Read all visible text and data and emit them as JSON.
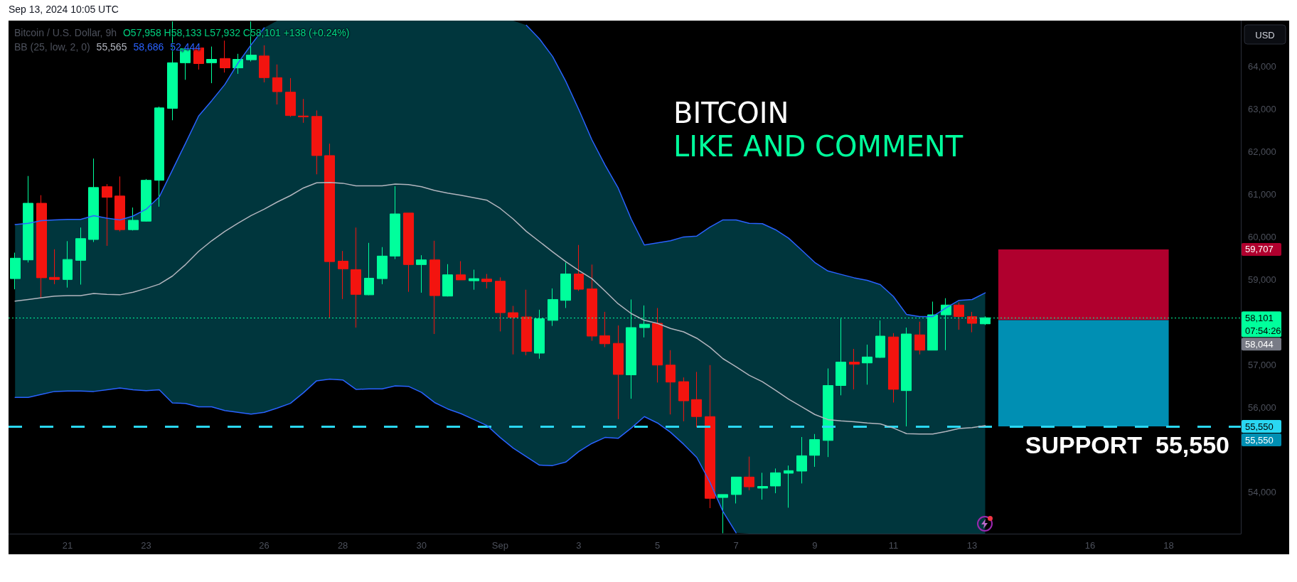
{
  "chart_data": {
    "type": "candlestick",
    "title": "Bitcoin / U.S. Dollar, 9h",
    "ylabel": "USD",
    "annotations": [
      "Sep 13, 2024 10:05 UTC",
      "O57,958 H58,133 L57,932 C58,101 +138 (+0.24%)",
      "BB (25, low, 2, 0)",
      "55,565",
      "58,686",
      "52,444",
      "BITCOIN",
      "LIKE AND COMMENT",
      {
        "text": "SUPPORT  55,550",
        "y": 55550
      },
      "07:54:26",
      "58,044",
      "59,707",
      "55,550"
    ],
    "categories": [
      null,
      null,
      null,
      null,
      "21",
      null,
      null,
      null,
      null,
      null,
      "23",
      null,
      null,
      null,
      null,
      null,
      null,
      null,
      null,
      "26",
      null,
      null,
      null,
      null,
      null,
      "28",
      null,
      null,
      null,
      null,
      null,
      "30",
      null,
      null,
      null,
      null,
      null,
      "Sep",
      null,
      null,
      null,
      null,
      null,
      "3",
      null,
      null,
      null,
      null,
      null,
      "5",
      null,
      null,
      null,
      null,
      null,
      "7",
      null,
      null,
      null,
      null,
      null,
      "9",
      null,
      null,
      null,
      null,
      null,
      "11",
      null,
      null,
      null,
      null,
      null,
      "13",
      null,
      null,
      null,
      null,
      null,
      null,
      null,
      null,
      "16",
      null,
      null,
      null,
      null,
      null,
      "18",
      null,
      null,
      null,
      null,
      null
    ],
    "ohlc": [
      [
        59020,
        59630,
        58770,
        59500
      ],
      [
        59460,
        61430,
        59400,
        60790
      ],
      [
        60790,
        60980,
        58560,
        59040
      ],
      [
        59050,
        59710,
        58890,
        59000
      ],
      [
        59000,
        59900,
        58810,
        59470
      ],
      [
        59450,
        60220,
        58880,
        59960
      ],
      [
        59940,
        61840,
        59880,
        61160
      ],
      [
        61180,
        61240,
        59790,
        60930
      ],
      [
        60960,
        61420,
        60130,
        60170
      ],
      [
        60170,
        60690,
        60150,
        60390
      ],
      [
        60370,
        61360,
        60360,
        61330
      ],
      [
        61330,
        63060,
        60710,
        63030
      ],
      [
        63020,
        65060,
        62740,
        64090
      ],
      [
        64090,
        64430,
        63690,
        64420
      ],
      [
        64440,
        64440,
        63930,
        64070
      ],
      [
        64090,
        64470,
        63610,
        64170
      ],
      [
        64190,
        64610,
        63860,
        63970
      ],
      [
        63970,
        64300,
        63830,
        64170
      ],
      [
        64160,
        65060,
        64120,
        64270
      ],
      [
        64250,
        64500,
        63630,
        63740
      ],
      [
        63740,
        64050,
        63110,
        63410
      ],
      [
        63400,
        63730,
        62820,
        62850
      ],
      [
        62840,
        63240,
        62680,
        62820
      ],
      [
        62830,
        62970,
        61470,
        61910
      ],
      [
        61910,
        62190,
        58100,
        59420
      ],
      [
        59430,
        59670,
        58540,
        59250
      ],
      [
        59230,
        60220,
        57870,
        58650
      ],
      [
        58640,
        59860,
        58630,
        59030
      ],
      [
        59020,
        59760,
        58890,
        59550
      ],
      [
        59550,
        61190,
        59480,
        60540
      ],
      [
        60560,
        60560,
        58710,
        59350
      ],
      [
        59350,
        59570,
        58690,
        59460
      ],
      [
        59460,
        59910,
        57720,
        58620
      ],
      [
        58610,
        59360,
        58600,
        59110
      ],
      [
        59110,
        59430,
        58990,
        58990
      ],
      [
        58970,
        59230,
        58760,
        59020
      ],
      [
        59010,
        59130,
        58790,
        58950
      ],
      [
        58960,
        59050,
        57780,
        58220
      ],
      [
        58220,
        58380,
        57240,
        58110
      ],
      [
        58120,
        58760,
        57220,
        57310
      ],
      [
        57270,
        58290,
        57140,
        58080
      ],
      [
        58040,
        58790,
        57910,
        58530
      ],
      [
        58510,
        59400,
        58330,
        59130
      ],
      [
        59130,
        59810,
        58730,
        58770
      ],
      [
        58780,
        59350,
        57560,
        57670
      ],
      [
        57680,
        58240,
        57410,
        57490
      ],
      [
        57500,
        57920,
        55720,
        56770
      ],
      [
        56760,
        58530,
        56200,
        57870
      ],
      [
        57870,
        58390,
        57640,
        57950
      ],
      [
        57970,
        58330,
        56580,
        56990
      ],
      [
        56990,
        57340,
        55830,
        56590
      ],
      [
        56600,
        56700,
        55670,
        56150
      ],
      [
        56180,
        56830,
        55530,
        55780
      ],
      [
        55780,
        56990,
        53630,
        53860
      ],
      [
        53880,
        53950,
        53040,
        53950
      ],
      [
        53950,
        54360,
        53740,
        54360
      ],
      [
        54360,
        54840,
        54050,
        54130
      ],
      [
        54100,
        54460,
        53830,
        54140
      ],
      [
        54150,
        54560,
        53980,
        54460
      ],
      [
        54450,
        54630,
        53640,
        54510
      ],
      [
        54500,
        55300,
        54210,
        54860
      ],
      [
        54870,
        55370,
        54600,
        55240
      ],
      [
        55220,
        56910,
        54830,
        56510
      ],
      [
        56510,
        58080,
        56280,
        57060
      ],
      [
        57060,
        57370,
        56420,
        57010
      ],
      [
        57040,
        57470,
        56530,
        57180
      ],
      [
        57170,
        58040,
        57160,
        57670
      ],
      [
        57650,
        57740,
        56110,
        56420
      ],
      [
        56390,
        57870,
        55550,
        57720
      ],
      [
        57700,
        58010,
        57240,
        57340
      ],
      [
        57340,
        58480,
        57340,
        58170
      ],
      [
        58170,
        58560,
        57340,
        58400
      ],
      [
        58400,
        58460,
        57820,
        58130
      ],
      [
        58130,
        58240,
        57760,
        57970
      ],
      [
        57958,
        58133,
        57932,
        58101
      ],
      null,
      null,
      null,
      null,
      null,
      null,
      null,
      null,
      null,
      null,
      null,
      null,
      null,
      null,
      null,
      null,
      null,
      null,
      null
    ],
    "colors": [
      "#00ff9c",
      "#00ff9c",
      "#f3140f",
      "#f3140f",
      "#00ff9c",
      "#00ff9c",
      "#00ff9c",
      "#f3140f",
      "#f3140f",
      "#00ff9c",
      "#00ff9c",
      "#00ff9c",
      "#00ff9c",
      "#00ff9c",
      "#f3140f",
      "#00ff9c",
      "#f3140f",
      "#00ff9c",
      "#00ff9c",
      "#f3140f",
      "#f3140f",
      "#f3140f",
      "#f3140f",
      "#f3140f",
      "#f3140f",
      "#f3140f",
      "#f3140f",
      "#00ff9c",
      "#00ff9c",
      "#00ff9c",
      "#f3140f",
      "#00ff9c",
      "#f3140f",
      "#00ff9c",
      "#f3140f",
      "#00ff9c",
      "#f3140f",
      "#f3140f",
      "#f3140f",
      "#f3140f",
      "#00ff9c",
      "#00ff9c",
      "#00ff9c",
      "#f3140f",
      "#f3140f",
      "#f3140f",
      "#f3140f",
      "#00ff9c",
      "#00ff9c",
      "#f3140f",
      "#f3140f",
      "#f3140f",
      "#f3140f",
      "#f3140f",
      "#00ff9c",
      "#00ff9c",
      "#f3140f",
      "#00ff9c",
      "#00ff9c",
      "#00ff9c",
      "#00ff9c",
      "#00ff9c",
      "#00ff9c",
      "#00ff9c",
      "#f3140f",
      "#00ff9c",
      "#00ff9c",
      "#f3140f",
      "#00ff9c",
      "#f3140f",
      "#00ff9c",
      "#00ff9c",
      "#f3140f",
      "#f3140f",
      "#00ff9c",
      null,
      null,
      null,
      null,
      null,
      null,
      null,
      null,
      null,
      null,
      null,
      null,
      null,
      null,
      null,
      null,
      null,
      null,
      null
    ],
    "series": [
      {
        "type": "line",
        "color": "#2962ff",
        "values": [
          60290,
          60320,
          60380,
          60400,
          60410,
          60410,
          60500,
          60440,
          60400,
          60490,
          60650,
          60940,
          61570,
          62200,
          62840,
          63200,
          63580,
          64080,
          64510,
          64910,
          null,
          null,
          null,
          null,
          null,
          null,
          null,
          null,
          null,
          null,
          null,
          null,
          null,
          null,
          null,
          null,
          null,
          null,
          null,
          64970,
          64650,
          64240,
          63660,
          62990,
          62280,
          61690,
          61150,
          60420,
          59810,
          59860,
          59910,
          60000,
          60020,
          60230,
          60400,
          60400,
          60320,
          60310,
          60170,
          59970,
          59690,
          59400,
          59200,
          59120,
          59040,
          58980,
          58880,
          58600,
          58180,
          58130,
          58130,
          58330,
          58510,
          58530,
          58686,
          null,
          null,
          null,
          null,
          null,
          null,
          null,
          null,
          null,
          null,
          null,
          null,
          null,
          null,
          null,
          null,
          null,
          null,
          null
        ]
      },
      {
        "type": "line",
        "color": "#b2b5be",
        "values": [
          58490,
          58530,
          58570,
          58610,
          58620,
          58620,
          58670,
          58650,
          58640,
          58700,
          58790,
          58890,
          59080,
          59350,
          59660,
          59910,
          60130,
          60320,
          60500,
          60650,
          60820,
          60970,
          61150,
          61270,
          61280,
          61260,
          61200,
          61200,
          61200,
          61240,
          61230,
          61180,
          61090,
          61030,
          60980,
          60920,
          60860,
          60670,
          60420,
          60130,
          59890,
          59650,
          59420,
          59210,
          59020,
          58730,
          58430,
          58200,
          58040,
          57970,
          57850,
          57770,
          57620,
          57410,
          57140,
          56950,
          56750,
          56600,
          56400,
          56190,
          56010,
          55830,
          55710,
          55680,
          55660,
          55630,
          55610,
          55510,
          55380,
          55370,
          55370,
          55430,
          55500,
          55520,
          55565,
          null,
          null,
          null,
          null,
          null,
          null,
          null,
          null,
          null,
          null,
          null,
          null,
          null,
          null,
          null,
          null,
          null,
          null,
          null
        ],
        "upper": [
          60290,
          60320,
          60380,
          60400,
          60410,
          60410,
          60500,
          60440,
          60400,
          60490,
          60650,
          60940,
          61570,
          62200,
          62840,
          63200,
          63580,
          64080,
          64510,
          64910,
          65080,
          65080,
          65080,
          65080,
          65080,
          65080,
          65080,
          65080,
          65080,
          65080,
          65080,
          65080,
          65080,
          65080,
          65080,
          65080,
          65080,
          65080,
          65080,
          64970,
          64650,
          64240,
          63660,
          62990,
          62280,
          61690,
          61150,
          60420,
          59810,
          59860,
          59910,
          60000,
          60020,
          60230,
          60400,
          60400,
          60320,
          60310,
          60170,
          59970,
          59690,
          59400,
          59200,
          59120,
          59040,
          58980,
          58880,
          58600,
          58180,
          58130,
          58130,
          58330,
          58510,
          58530,
          58686,
          null,
          null,
          null,
          null,
          null,
          null,
          null,
          null,
          null,
          null,
          null,
          null,
          null,
          null,
          null,
          null,
          null,
          null,
          null
        ],
        "lower": [
          56230,
          56230,
          56300,
          56370,
          56380,
          56380,
          56370,
          56410,
          56450,
          56410,
          56390,
          56410,
          56100,
          56090,
          56010,
          56010,
          55920,
          55880,
          55840,
          55880,
          55980,
          56090,
          56340,
          56620,
          56660,
          56640,
          56420,
          56430,
          56430,
          56500,
          56490,
          56350,
          56110,
          55960,
          55850,
          55710,
          55570,
          55290,
          55040,
          54840,
          54640,
          54630,
          54710,
          54960,
          55150,
          55290,
          55270,
          55510,
          55780,
          55630,
          55410,
          55130,
          54820,
          54240,
          53550,
          53050,
          53030,
          53030,
          53030,
          53030,
          53030,
          53030,
          53030,
          53030,
          53030,
          53030,
          53030,
          53030,
          53030,
          53030,
          53030,
          53030,
          53030,
          53030,
          53030,
          null,
          null,
          null,
          null,
          null,
          null,
          null,
          null,
          null,
          null,
          null,
          null,
          null,
          null,
          null,
          null,
          null,
          null,
          null
        ]
      },
      {
        "type": "line",
        "color": "#2962ff",
        "values": [
          56230,
          56230,
          56300,
          56370,
          56380,
          56380,
          56370,
          56410,
          56450,
          56410,
          56390,
          56410,
          56100,
          56090,
          56010,
          56010,
          55920,
          55880,
          55840,
          55880,
          55980,
          56090,
          56340,
          56620,
          56660,
          56640,
          56420,
          56430,
          56430,
          56500,
          56490,
          56350,
          56110,
          55960,
          55850,
          55710,
          55570,
          55290,
          55040,
          54840,
          54640,
          54630,
          54710,
          54960,
          55150,
          55290,
          55270,
          55510,
          55780,
          55630,
          55410,
          55130,
          54820,
          54240,
          53550,
          53050,
          null,
          null,
          null,
          null,
          null,
          null,
          null,
          null,
          null,
          null,
          null,
          null,
          null,
          null,
          null,
          null,
          null,
          null,
          null,
          null,
          null,
          null,
          null,
          null,
          null,
          null,
          null,
          null,
          null,
          null,
          null,
          null,
          null,
          null,
          null,
          null,
          null,
          null
        ]
      }
    ],
    "ylim": [
      53030,
      65080
    ],
    "yticks": [
      {
        "value": 54000,
        "label": "54,000"
      },
      {
        "value": 56000,
        "label": "56,000"
      },
      {
        "value": 57000,
        "label": "57,000"
      },
      {
        "value": 59000,
        "label": "59,000"
      },
      {
        "value": 60000,
        "label": "60,000"
      },
      {
        "value": 61000,
        "label": "61,000"
      },
      {
        "value": 62000,
        "label": "62,000"
      },
      {
        "value": 63000,
        "label": "63,000"
      },
      {
        "value": 64000,
        "label": "64,000"
      }
    ],
    "ref_lines": [
      {
        "axis": "y",
        "value": 58101,
        "label": "58,101",
        "color": "#00ff9c",
        "line_style": "dotted"
      },
      {
        "axis": "y",
        "value": 55550,
        "label": "55,550",
        "color": "#2ad7f2",
        "line_style": "dashed"
      }
    ],
    "bands": [
      {
        "axis": "y",
        "from": 58044,
        "to": 59707,
        "color": "#b0002e"
      },
      {
        "axis": "y",
        "from": 55550,
        "to": 58044,
        "color": "#008fb3"
      }
    ]
  }
}
